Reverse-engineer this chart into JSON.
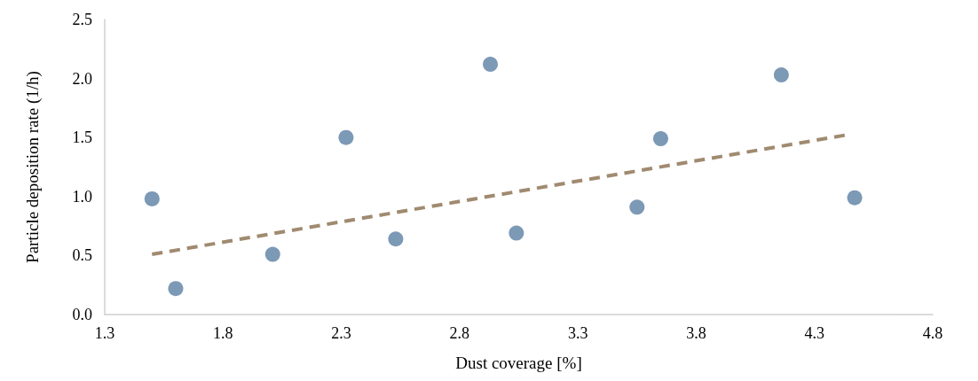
{
  "chart_data": {
    "type": "scatter",
    "xlabel": "Dust coverage [%]",
    "ylabel": "Particle deposition rate (1/h)",
    "xlim": [
      1.3,
      4.8
    ],
    "xticks": [
      1.3,
      1.8,
      2.3,
      2.8,
      3.3,
      3.8,
      4.3,
      4.8
    ],
    "ylim": [
      0,
      2.5
    ],
    "yticks": [
      {
        "value": 0,
        "label": "0.0"
      },
      {
        "value": 0.5,
        "label": "0.5"
      },
      {
        "value": 1,
        "label": "1.0"
      },
      {
        "value": 1.5,
        "label": "1.5"
      },
      {
        "value": 2,
        "label": "2.0"
      },
      {
        "value": 2.5,
        "label": "2.5"
      }
    ],
    "grid": false,
    "marker": "circle",
    "series": [
      {
        "color": "#5b7fa3",
        "x": [
          1.5,
          1.6,
          2.01,
          2.32,
          2.53,
          2.93,
          3.04,
          3.55,
          3.65,
          4.16,
          4.47
        ],
        "values": [
          0.98,
          0.22,
          0.51,
          1.5,
          0.64,
          2.12,
          0.69,
          0.91,
          1.49,
          2.03,
          0.99
        ]
      },
      {
        "type": "line",
        "color": "#a08a70",
        "line_style": "dashed",
        "marker": "none",
        "x": [
          1.5,
          4.43
        ],
        "values": [
          0.51,
          1.52
        ]
      }
    ]
  }
}
